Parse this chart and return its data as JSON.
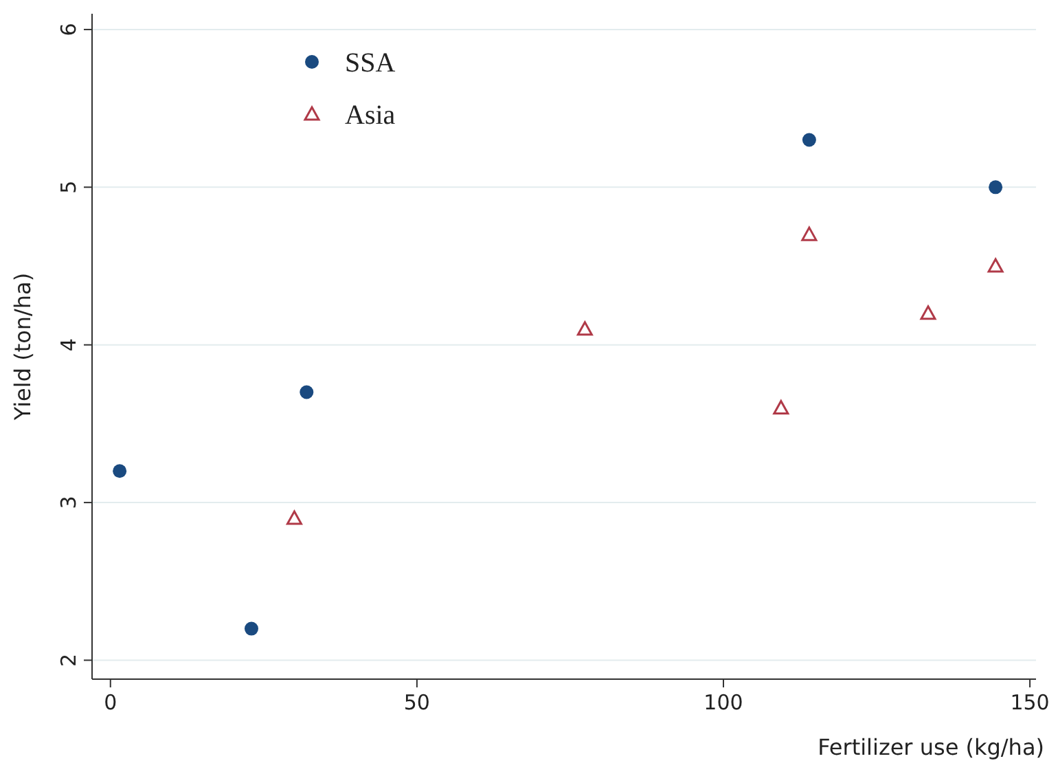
{
  "chart_data": {
    "type": "scatter",
    "xlabel": "Fertilizer use (kg/ha)",
    "ylabel": "Yield (ton/ha)",
    "xlim": [
      -3,
      151
    ],
    "ylim": [
      1.88,
      6.1
    ],
    "xticks": [
      0,
      50,
      100,
      150
    ],
    "yticks": [
      2,
      3,
      4,
      5,
      6
    ],
    "grid": "y",
    "legend": "top left",
    "series": [
      {
        "name": "SSA",
        "color": "#1a4a80",
        "marker": "circle",
        "x": [
          1.5,
          23,
          32,
          114,
          144.4
        ],
        "values": [
          3.2,
          2.2,
          3.7,
          5.3,
          5.0
        ]
      },
      {
        "name": "Asia",
        "color": "#b03a48",
        "marker": "triangle",
        "x": [
          30,
          77.4,
          109.4,
          114,
          133.4,
          144.4
        ],
        "values": [
          2.9,
          4.1,
          3.6,
          4.7,
          4.2,
          4.5
        ]
      }
    ]
  }
}
